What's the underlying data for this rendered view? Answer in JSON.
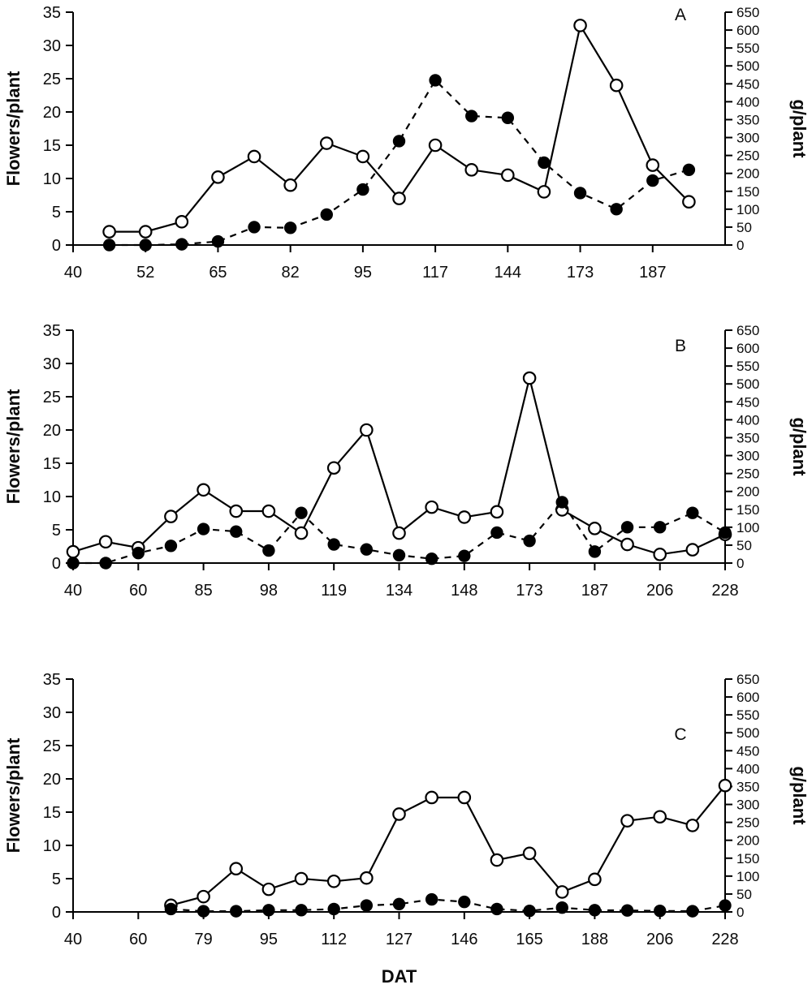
{
  "colors": {
    "line": "#000000",
    "background": "#ffffff"
  },
  "chart_data": [
    {
      "type": "line",
      "panel_label": "A",
      "xlabel": "",
      "x_tick_labels": [
        "40",
        "52",
        "65",
        "82",
        "95",
        "117",
        "144",
        "173",
        "187"
      ],
      "x_index_max": 18,
      "left_axis": {
        "label": "Flowers/plant",
        "min": 0,
        "max": 35,
        "step": 5
      },
      "right_axis": {
        "label": "g/plant",
        "min": 0,
        "max": 650,
        "step": 50
      },
      "legend": "open circles solid line = Flowers/plant (left axis); filled circles dashed line = g/plant (right axis)",
      "series": [
        {
          "name": "Flowers per plant",
          "axis": "left",
          "marker": "open-circle",
          "line": "solid",
          "start_index": 1,
          "values": [
            2,
            2,
            3.5,
            10.2,
            13.3,
            9,
            15.3,
            13.3,
            7,
            15,
            11.3,
            10.5,
            8,
            33,
            24,
            12,
            6.5
          ]
        },
        {
          "name": "Grams per plant",
          "axis": "right",
          "marker": "filled-circle",
          "line": "dashed",
          "start_index": 1,
          "values": [
            0,
            0,
            2,
            10,
            50,
            48,
            85,
            155,
            290,
            460,
            360,
            355,
            230,
            145,
            100,
            180,
            210
          ]
        }
      ]
    },
    {
      "type": "line",
      "panel_label": "B",
      "xlabel": "",
      "x_tick_labels": [
        "40",
        "60",
        "85",
        "98",
        "119",
        "134",
        "148",
        "173",
        "187",
        "206",
        "228"
      ],
      "x_index_max": 20,
      "left_axis": {
        "label": "Flowers/plant",
        "min": 0,
        "max": 35,
        "step": 5
      },
      "right_axis": {
        "label": "g/plant",
        "min": 0,
        "max": 650,
        "step": 50
      },
      "legend": "open circles solid line = Flowers/plant (left axis); filled circles dashed line = g/plant (right axis)",
      "series": [
        {
          "name": "Flowers per plant",
          "axis": "left",
          "marker": "open-circle",
          "line": "solid",
          "start_index": 0,
          "values": [
            1.7,
            3.2,
            2.3,
            7,
            11,
            7.8,
            7.8,
            4.5,
            14.3,
            20,
            4.5,
            8.4,
            6.9,
            7.7,
            27.8,
            8,
            5.2,
            2.8,
            1.3,
            2,
            4.3
          ]
        },
        {
          "name": "Grams per plant",
          "axis": "right",
          "marker": "filled-circle",
          "line": "dashed",
          "start_index": 0,
          "values": [
            0,
            0,
            28,
            48,
            95,
            88,
            35,
            140,
            52,
            38,
            22,
            12,
            20,
            85,
            62,
            170,
            32,
            100,
            100,
            140,
            85
          ]
        }
      ]
    },
    {
      "type": "line",
      "panel_label": "C",
      "xlabel": "DAT",
      "x_tick_labels": [
        "40",
        "60",
        "79",
        "95",
        "112",
        "127",
        "146",
        "165",
        "188",
        "206",
        "228"
      ],
      "x_index_max": 20,
      "left_axis": {
        "label": "Flowers/plant",
        "min": 0,
        "max": 35,
        "step": 5
      },
      "right_axis": {
        "label": "g/plant",
        "min": 0,
        "max": 650,
        "step": 50
      },
      "legend": "open circles solid line = Flowers/plant (left axis); filled circles dashed line = g/plant (right axis)",
      "series": [
        {
          "name": "Flowers per plant",
          "axis": "left",
          "marker": "open-circle",
          "line": "solid",
          "start_index": 3,
          "values": [
            1,
            2.3,
            6.5,
            3.4,
            5,
            4.6,
            5.1,
            14.7,
            17.2,
            17.2,
            7.8,
            8.8,
            3,
            4.9,
            13.7,
            14.3,
            13,
            19
          ]
        },
        {
          "name": "Grams per plant",
          "axis": "right",
          "marker": "filled-circle",
          "line": "dashed",
          "start_index": 3,
          "values": [
            8,
            2,
            2,
            5,
            5,
            8,
            18,
            22,
            35,
            28,
            8,
            3,
            12,
            5,
            4,
            3,
            2,
            18
          ]
        }
      ]
    }
  ]
}
